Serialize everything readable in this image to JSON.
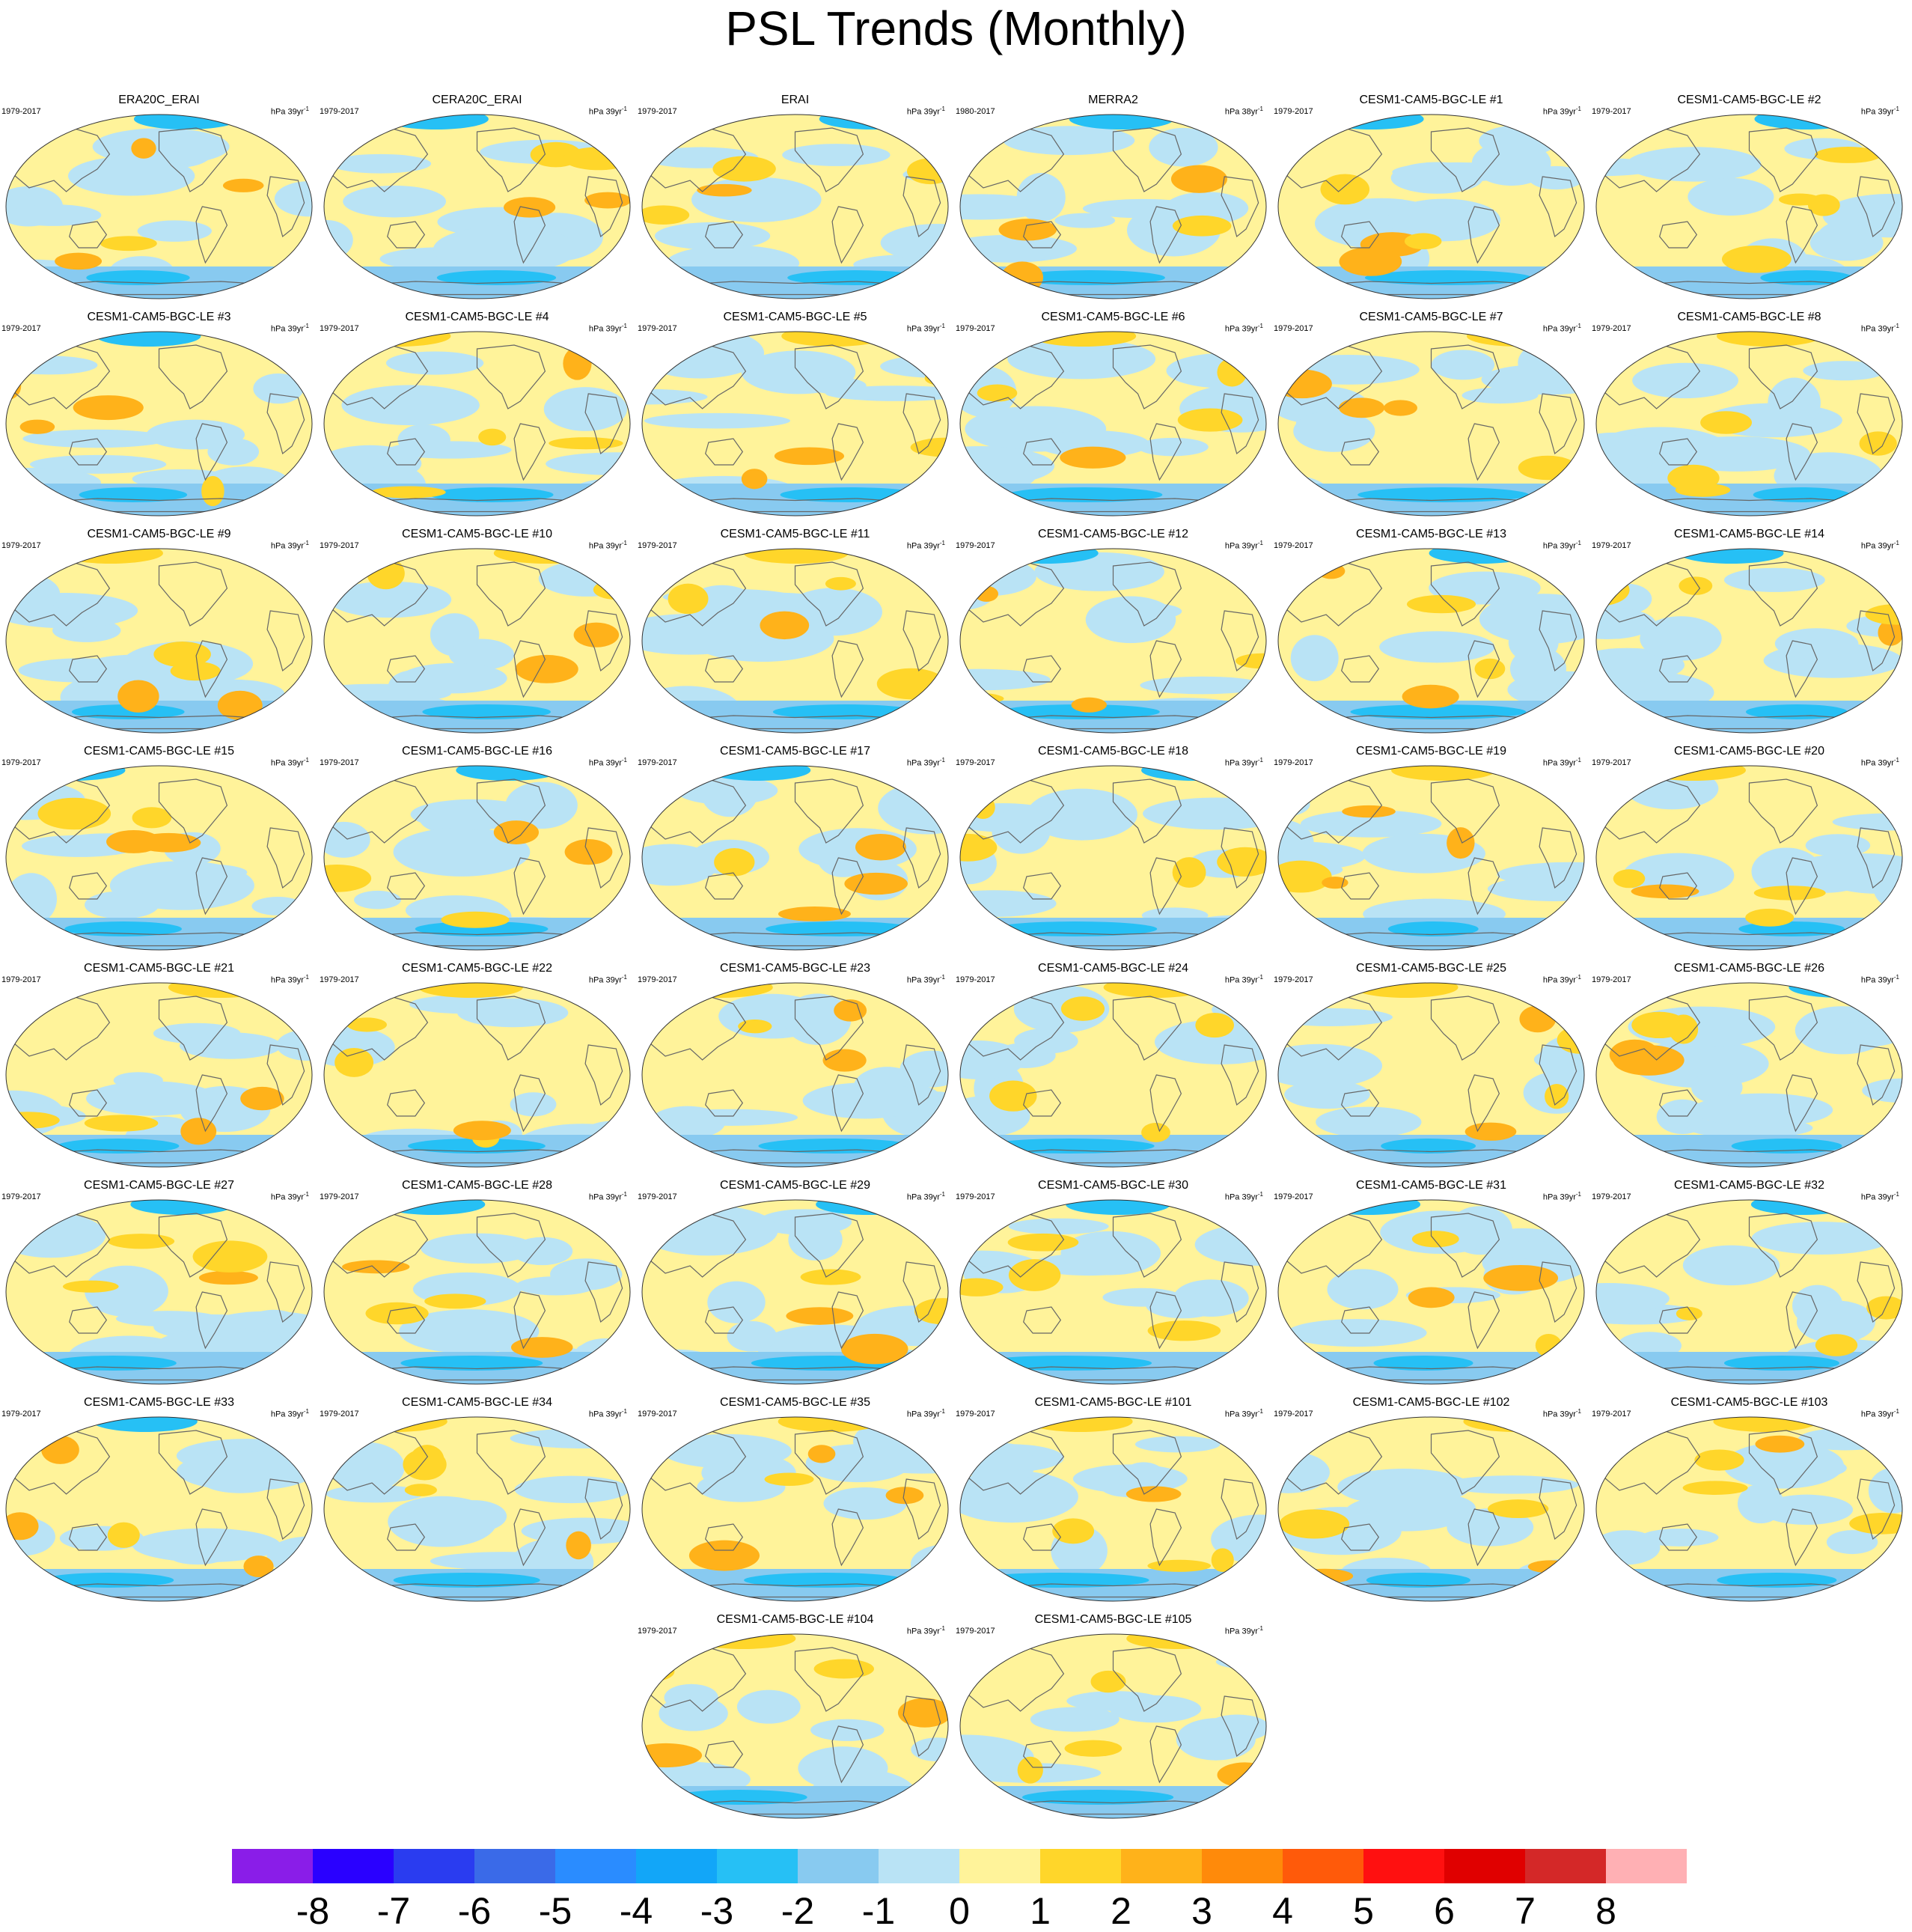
{
  "title": "PSL Trends (Monthly)",
  "panel_units": "hPa",
  "panels": [
    {
      "name": "ERA20C_ERAI",
      "years": "1979-2017",
      "units": "39yr",
      "units_exp": "-1"
    },
    {
      "name": "CERA20C_ERAI",
      "years": "1979-2017",
      "units": "39yr",
      "units_exp": "-1"
    },
    {
      "name": "ERAI",
      "years": "1979-2017",
      "units": "39yr",
      "units_exp": "-1"
    },
    {
      "name": "MERRA2",
      "years": "1980-2017",
      "units": "38yr",
      "units_exp": "-1"
    },
    {
      "name": "CESM1-CAM5-BGC-LE #1",
      "years": "1979-2017",
      "units": "39yr",
      "units_exp": "-1"
    },
    {
      "name": "CESM1-CAM5-BGC-LE #2",
      "years": "1979-2017",
      "units": "39yr",
      "units_exp": "-1"
    },
    {
      "name": "CESM1-CAM5-BGC-LE #3",
      "years": "1979-2017",
      "units": "39yr",
      "units_exp": "-1"
    },
    {
      "name": "CESM1-CAM5-BGC-LE #4",
      "years": "1979-2017",
      "units": "39yr",
      "units_exp": "-1"
    },
    {
      "name": "CESM1-CAM5-BGC-LE #5",
      "years": "1979-2017",
      "units": "39yr",
      "units_exp": "-1"
    },
    {
      "name": "CESM1-CAM5-BGC-LE #6",
      "years": "1979-2017",
      "units": "39yr",
      "units_exp": "-1"
    },
    {
      "name": "CESM1-CAM5-BGC-LE #7",
      "years": "1979-2017",
      "units": "39yr",
      "units_exp": "-1"
    },
    {
      "name": "CESM1-CAM5-BGC-LE #8",
      "years": "1979-2017",
      "units": "39yr",
      "units_exp": "-1"
    },
    {
      "name": "CESM1-CAM5-BGC-LE #9",
      "years": "1979-2017",
      "units": "39yr",
      "units_exp": "-1"
    },
    {
      "name": "CESM1-CAM5-BGC-LE #10",
      "years": "1979-2017",
      "units": "39yr",
      "units_exp": "-1"
    },
    {
      "name": "CESM1-CAM5-BGC-LE #11",
      "years": "1979-2017",
      "units": "39yr",
      "units_exp": "-1"
    },
    {
      "name": "CESM1-CAM5-BGC-LE #12",
      "years": "1979-2017",
      "units": "39yr",
      "units_exp": "-1"
    },
    {
      "name": "CESM1-CAM5-BGC-LE #13",
      "years": "1979-2017",
      "units": "39yr",
      "units_exp": "-1"
    },
    {
      "name": "CESM1-CAM5-BGC-LE #14",
      "years": "1979-2017",
      "units": "39yr",
      "units_exp": "-1"
    },
    {
      "name": "CESM1-CAM5-BGC-LE #15",
      "years": "1979-2017",
      "units": "39yr",
      "units_exp": "-1"
    },
    {
      "name": "CESM1-CAM5-BGC-LE #16",
      "years": "1979-2017",
      "units": "39yr",
      "units_exp": "-1"
    },
    {
      "name": "CESM1-CAM5-BGC-LE #17",
      "years": "1979-2017",
      "units": "39yr",
      "units_exp": "-1"
    },
    {
      "name": "CESM1-CAM5-BGC-LE #18",
      "years": "1979-2017",
      "units": "39yr",
      "units_exp": "-1"
    },
    {
      "name": "CESM1-CAM5-BGC-LE #19",
      "years": "1979-2017",
      "units": "39yr",
      "units_exp": "-1"
    },
    {
      "name": "CESM1-CAM5-BGC-LE #20",
      "years": "1979-2017",
      "units": "39yr",
      "units_exp": "-1"
    },
    {
      "name": "CESM1-CAM5-BGC-LE #21",
      "years": "1979-2017",
      "units": "39yr",
      "units_exp": "-1"
    },
    {
      "name": "CESM1-CAM5-BGC-LE #22",
      "years": "1979-2017",
      "units": "39yr",
      "units_exp": "-1"
    },
    {
      "name": "CESM1-CAM5-BGC-LE #23",
      "years": "1979-2017",
      "units": "39yr",
      "units_exp": "-1"
    },
    {
      "name": "CESM1-CAM5-BGC-LE #24",
      "years": "1979-2017",
      "units": "39yr",
      "units_exp": "-1"
    },
    {
      "name": "CESM1-CAM5-BGC-LE #25",
      "years": "1979-2017",
      "units": "39yr",
      "units_exp": "-1"
    },
    {
      "name": "CESM1-CAM5-BGC-LE #26",
      "years": "1979-2017",
      "units": "39yr",
      "units_exp": "-1"
    },
    {
      "name": "CESM1-CAM5-BGC-LE #27",
      "years": "1979-2017",
      "units": "39yr",
      "units_exp": "-1"
    },
    {
      "name": "CESM1-CAM5-BGC-LE #28",
      "years": "1979-2017",
      "units": "39yr",
      "units_exp": "-1"
    },
    {
      "name": "CESM1-CAM5-BGC-LE #29",
      "years": "1979-2017",
      "units": "39yr",
      "units_exp": "-1"
    },
    {
      "name": "CESM1-CAM5-BGC-LE #30",
      "years": "1979-2017",
      "units": "39yr",
      "units_exp": "-1"
    },
    {
      "name": "CESM1-CAM5-BGC-LE #31",
      "years": "1979-2017",
      "units": "39yr",
      "units_exp": "-1"
    },
    {
      "name": "CESM1-CAM5-BGC-LE #32",
      "years": "1979-2017",
      "units": "39yr",
      "units_exp": "-1"
    },
    {
      "name": "CESM1-CAM5-BGC-LE #33",
      "years": "1979-2017",
      "units": "39yr",
      "units_exp": "-1"
    },
    {
      "name": "CESM1-CAM5-BGC-LE #34",
      "years": "1979-2017",
      "units": "39yr",
      "units_exp": "-1"
    },
    {
      "name": "CESM1-CAM5-BGC-LE #35",
      "years": "1979-2017",
      "units": "39yr",
      "units_exp": "-1"
    },
    {
      "name": "CESM1-CAM5-BGC-LE #101",
      "years": "1979-2017",
      "units": "39yr",
      "units_exp": "-1"
    },
    {
      "name": "CESM1-CAM5-BGC-LE #102",
      "years": "1979-2017",
      "units": "39yr",
      "units_exp": "-1"
    },
    {
      "name": "CESM1-CAM5-BGC-LE #103",
      "years": "1979-2017",
      "units": "39yr",
      "units_exp": "-1"
    },
    {
      "name": "CESM1-CAM5-BGC-LE #104",
      "years": "1979-2017",
      "units": "39yr",
      "units_exp": "-1"
    },
    {
      "name": "CESM1-CAM5-BGC-LE #105",
      "years": "1979-2017",
      "units": "39yr",
      "units_exp": "-1"
    }
  ],
  "colorbar": {
    "labels": [
      "-8",
      "-7",
      "-6",
      "-5",
      "-4",
      "-3",
      "-2",
      "-1",
      "0",
      "1",
      "2",
      "3",
      "4",
      "5",
      "6",
      "7",
      "8"
    ],
    "colors": [
      "#8a1de8",
      "#2a00ff",
      "#2a3cf0",
      "#3a6ae8",
      "#2a8cff",
      "#12a6f8",
      "#26c0f5",
      "#88caf0",
      "#b9e3f5",
      "#fff39a",
      "#ffd62a",
      "#ffb21a",
      "#ff8a0a",
      "#ff5a0a",
      "#ff1010",
      "#e00000",
      "#d42828",
      "#ffb0b4"
    ]
  }
}
